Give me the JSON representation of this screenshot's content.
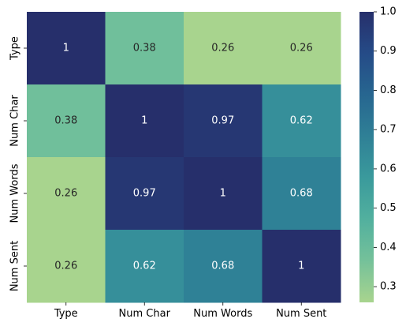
{
  "chart_data": {
    "type": "heatmap",
    "title": "",
    "xlabel": "",
    "ylabel": "",
    "x_categories": [
      "Type",
      "Num Char",
      "Num Words",
      "Num Sent"
    ],
    "y_categories": [
      "Type",
      "Num Char",
      "Num Words",
      "Num Sent"
    ],
    "values": [
      [
        1,
        0.38,
        0.26,
        0.26
      ],
      [
        0.38,
        1,
        0.97,
        0.62
      ],
      [
        0.26,
        0.97,
        1,
        0.68
      ],
      [
        0.26,
        0.62,
        0.68,
        1
      ]
    ],
    "annotations": [
      [
        "1",
        "0.38",
        "0.26",
        "0.26"
      ],
      [
        "0.38",
        "1",
        "0.97",
        "0.62"
      ],
      [
        "0.26",
        "0.97",
        "1",
        "0.68"
      ],
      [
        "0.26",
        "0.62",
        "0.68",
        "1"
      ]
    ],
    "colorbar": {
      "min": 0.26,
      "max": 1.0,
      "ticks": [
        0.3,
        0.4,
        0.5,
        0.6,
        0.7,
        0.8,
        0.9,
        1.0
      ],
      "tick_labels": [
        "0.3",
        "0.4",
        "0.5",
        "0.6",
        "0.7",
        "0.8",
        "0.9",
        "1.0"
      ],
      "colormap": [
        "#a8d48e",
        "#75c19a",
        "#52b09e",
        "#3a9a9c",
        "#2f8096",
        "#276690",
        "#254b87",
        "#262f6b"
      ]
    },
    "grid": false
  }
}
